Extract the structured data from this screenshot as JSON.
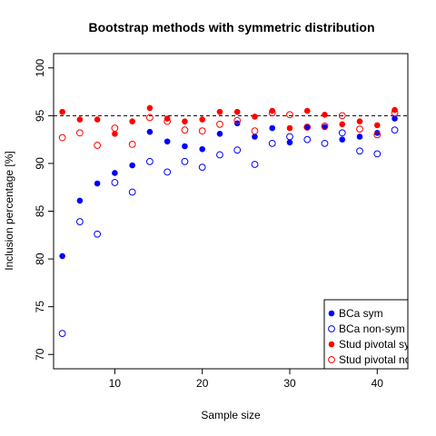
{
  "chart_data": {
    "type": "scatter",
    "title": "Bootstrap methods with symmetric distribution",
    "xlabel": "Sample size",
    "ylabel": "Inclusion percentage [%]",
    "xlim": [
      3,
      43.5
    ],
    "ylim": [
      68.5,
      101.5
    ],
    "xticks": [
      10,
      20,
      30,
      40
    ],
    "yticks": [
      70,
      75,
      80,
      85,
      90,
      95,
      100
    ],
    "reference_line": {
      "y": 95,
      "style": "dashed",
      "color": "#000000"
    },
    "grid": false,
    "legend_position": "bottom-right",
    "series": [
      {
        "name": "BCa sym",
        "color": "#0000ff",
        "marker": "filled",
        "x": [
          4,
          6,
          8,
          10,
          12,
          14,
          16,
          18,
          20,
          22,
          24,
          26,
          28,
          30,
          32,
          34,
          36,
          38,
          40,
          42
        ],
        "y": [
          80.3,
          86.1,
          87.9,
          89.0,
          89.8,
          93.3,
          92.3,
          91.8,
          91.5,
          93.1,
          94.2,
          92.8,
          93.7,
          92.2,
          93.8,
          93.8,
          92.5,
          92.8,
          93.2,
          94.7
        ]
      },
      {
        "name": "BCa non-sym",
        "color": "#0000ff",
        "marker": "open",
        "x": [
          4,
          6,
          8,
          10,
          12,
          14,
          16,
          18,
          20,
          22,
          24,
          26,
          28,
          30,
          32,
          34,
          36,
          38,
          40,
          42
        ],
        "y": [
          72.2,
          83.9,
          82.6,
          88.0,
          87.0,
          90.2,
          89.1,
          90.2,
          89.6,
          90.9,
          91.4,
          89.9,
          92.1,
          92.8,
          92.5,
          92.1,
          93.2,
          91.3,
          91.0,
          93.5
        ]
      },
      {
        "name": "Stud pivotal sym",
        "color": "#ff0000",
        "marker": "filled",
        "x": [
          4,
          6,
          8,
          10,
          12,
          14,
          16,
          18,
          20,
          22,
          24,
          26,
          28,
          30,
          32,
          34,
          36,
          38,
          40,
          42
        ],
        "y": [
          95.4,
          94.6,
          94.6,
          93.1,
          94.4,
          95.8,
          94.7,
          94.4,
          94.6,
          95.4,
          95.4,
          94.9,
          95.5,
          93.7,
          95.5,
          95.1,
          94.1,
          94.4,
          94.0,
          95.6
        ]
      },
      {
        "name": "Stud pivotal non-sym",
        "color": "#ff0000",
        "marker": "open",
        "x": [
          4,
          6,
          8,
          10,
          12,
          14,
          16,
          18,
          20,
          22,
          24,
          26,
          28,
          30,
          32,
          34,
          36,
          38,
          40,
          42
        ],
        "y": [
          92.7,
          93.2,
          91.9,
          93.7,
          92.0,
          94.8,
          94.4,
          93.5,
          93.4,
          94.1,
          94.5,
          93.4,
          95.3,
          95.1,
          93.8,
          93.9,
          95.0,
          93.6,
          93.0,
          95.3
        ]
      }
    ]
  }
}
